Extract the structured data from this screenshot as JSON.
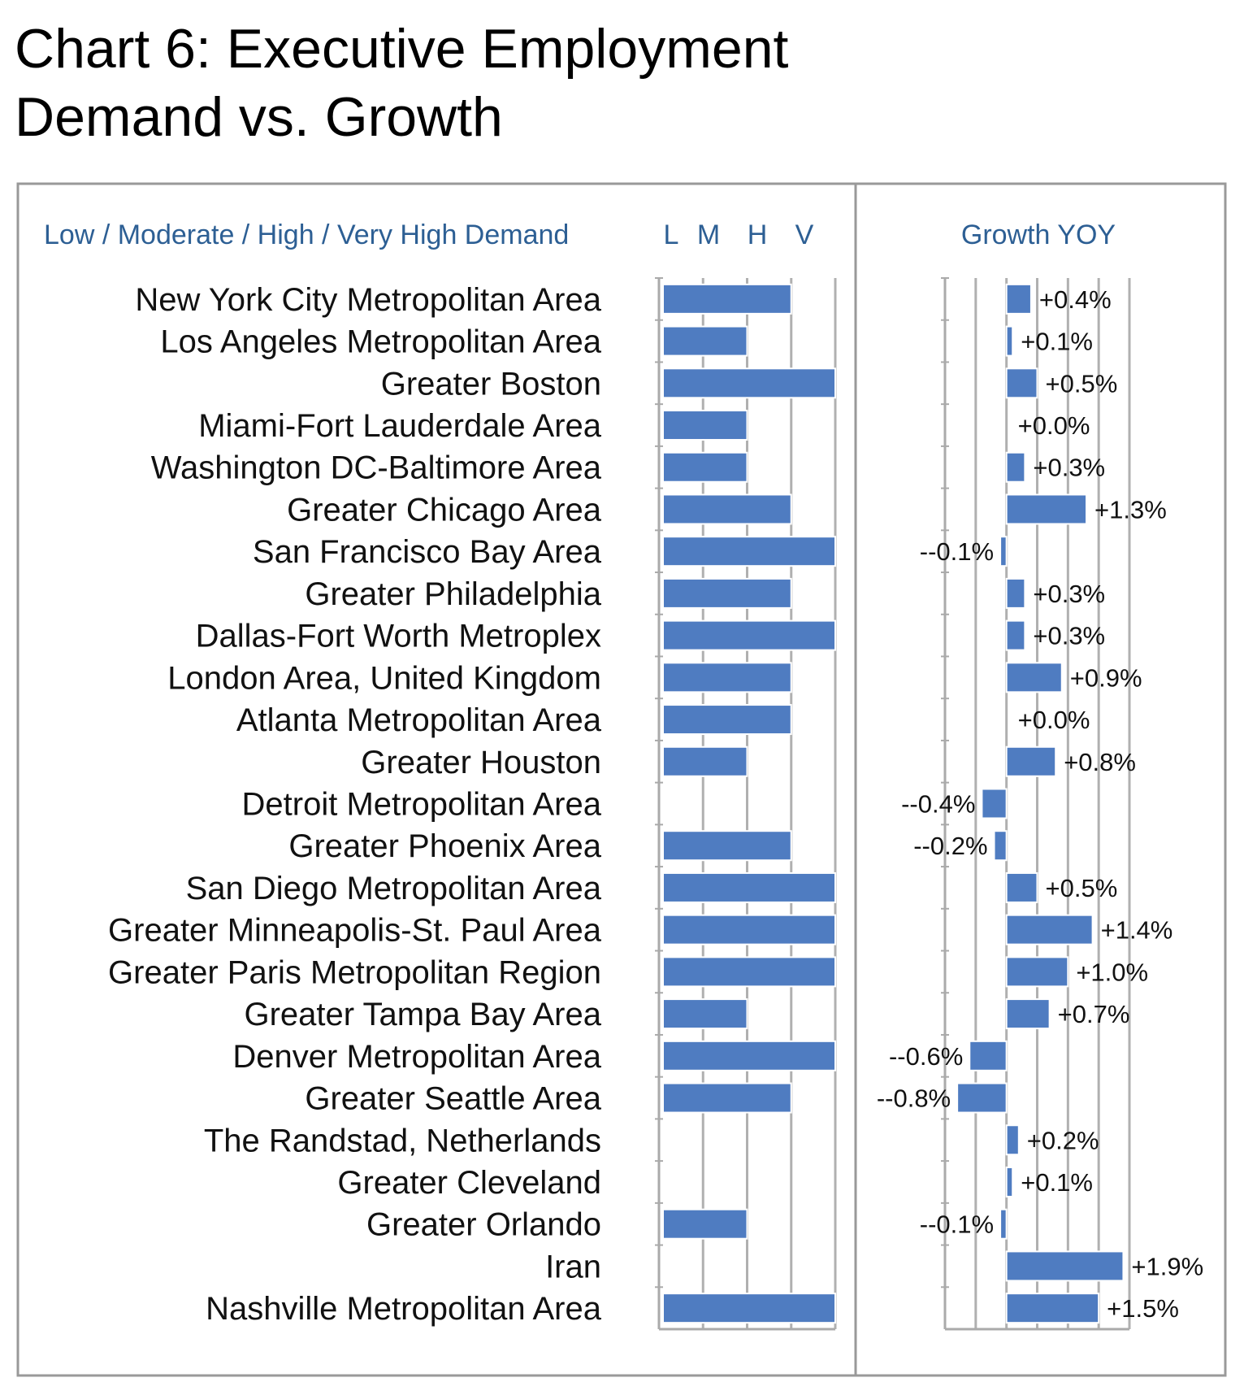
{
  "title_lines": [
    "Chart 6: Executive Employment",
    "Demand vs. Growth"
  ],
  "chart_data": [
    {
      "type": "bar",
      "orientation": "horizontal",
      "header": "Low / Moderate / High / Very High Demand",
      "level_labels": [
        "L",
        "M",
        "H",
        "V"
      ],
      "xlim": [
        0,
        4
      ],
      "grid": true,
      "bar_color": "#4f7cc1",
      "categories": [
        "New York City Metropolitan Area",
        "Los Angeles Metropolitan Area",
        "Greater Boston",
        "Miami-Fort Lauderdale Area",
        "Washington DC-Baltimore Area",
        "Greater Chicago Area",
        "San Francisco Bay Area",
        "Greater Philadelphia",
        "Dallas-Fort Worth Metroplex",
        "London Area, United Kingdom",
        "Atlanta Metropolitan Area",
        "Greater Houston",
        "Detroit Metropolitan Area",
        "Greater Phoenix Area",
        "San Diego Metropolitan Area",
        "Greater Minneapolis-St. Paul Area",
        "Greater Paris Metropolitan Region",
        "Greater Tampa Bay Area",
        "Denver Metropolitan Area",
        "Greater Seattle Area",
        "The Randstad, Netherlands",
        "Greater Cleveland",
        "Greater Orlando",
        "Iran",
        "Nashville Metropolitan Area"
      ],
      "values": [
        3,
        2,
        4,
        2,
        2,
        3,
        4,
        3,
        4,
        3,
        3,
        2,
        0,
        3,
        4,
        4,
        4,
        2,
        4,
        3,
        0,
        0,
        2,
        0,
        4
      ]
    },
    {
      "type": "bar",
      "orientation": "horizontal",
      "header": "Growth YOY",
      "unit": "%",
      "xlim": [
        -1.0,
        2.0
      ],
      "grid": true,
      "bar_color": "#4f7cc1",
      "values": [
        0.4,
        0.1,
        0.5,
        0.0,
        0.3,
        1.3,
        -0.1,
        0.3,
        0.3,
        0.9,
        0.0,
        0.8,
        -0.4,
        -0.2,
        0.5,
        1.4,
        1.0,
        0.7,
        -0.6,
        -0.8,
        0.2,
        0.1,
        -0.1,
        1.9,
        1.5
      ],
      "labels": [
        "+0.4%",
        "+0.1%",
        "+0.5%",
        "+0.0%",
        "+0.3%",
        "+1.3%",
        "--0.1%",
        "+0.3%",
        "+0.3%",
        "+0.9%",
        "+0.0%",
        "+0.8%",
        "--0.4%",
        "--0.2%",
        "+0.5%",
        "+1.4%",
        "+1.0%",
        "+0.7%",
        "--0.6%",
        "--0.8%",
        "+0.2%",
        "+0.1%",
        "--0.1%",
        "+1.9%",
        "+1.5%"
      ]
    }
  ]
}
